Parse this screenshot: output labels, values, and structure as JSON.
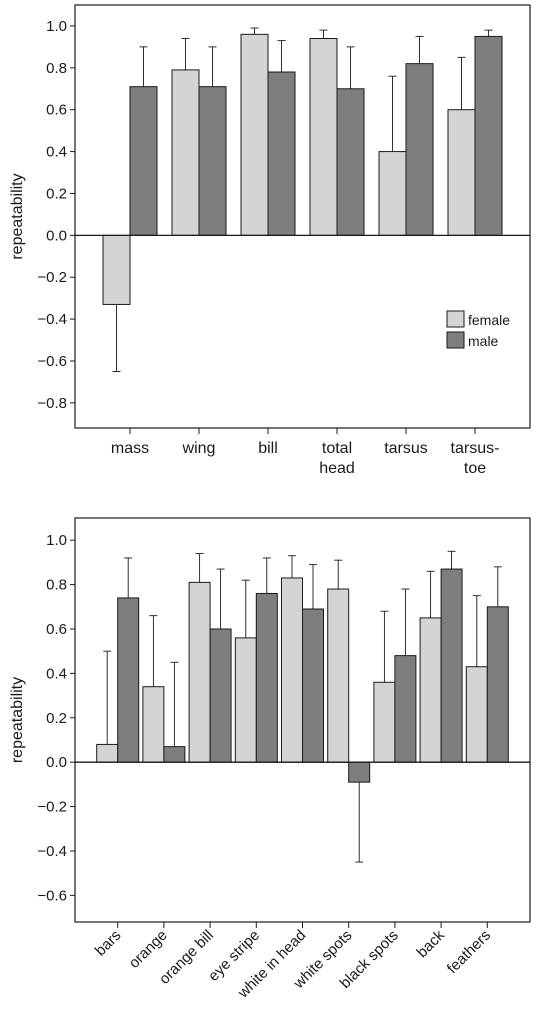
{
  "colors": {
    "female": "#d4d4d4",
    "male": "#7e7e7e",
    "stroke": "#1a1a1a"
  },
  "legend": {
    "female": "female",
    "male": "male"
  },
  "chart_data": [
    {
      "type": "bar",
      "ylabel": "repeatability",
      "ylim": [
        -0.92,
        1.1
      ],
      "yticks": [
        -0.8,
        -0.6,
        -0.4,
        -0.2,
        0.0,
        0.2,
        0.4,
        0.6,
        0.8,
        1.0
      ],
      "ytick_labels": [
        "−0.8",
        "−0.6",
        "−0.4",
        "−0.2",
        "0.0",
        "0.2",
        "0.4",
        "0.6",
        "0.8",
        "1.0"
      ],
      "categories": [
        [
          "mass"
        ],
        [
          "wing"
        ],
        [
          "bill"
        ],
        [
          "total",
          "head"
        ],
        [
          "tarsus"
        ],
        [
          "tarsus-",
          "toe"
        ]
      ],
      "series": [
        {
          "name": "female",
          "values": [
            -0.33,
            0.79,
            0.96,
            0.94,
            0.4,
            0.6
          ],
          "errors": [
            0.32,
            0.15,
            0.03,
            0.04,
            0.36,
            0.25
          ]
        },
        {
          "name": "male",
          "values": [
            0.71,
            0.71,
            0.78,
            0.7,
            0.82,
            0.95
          ],
          "errors": [
            0.19,
            0.19,
            0.15,
            0.2,
            0.13,
            0.03
          ]
        }
      ],
      "legend_position": "right"
    },
    {
      "type": "bar",
      "ylabel": "repeatability",
      "ylim": [
        -0.72,
        1.1
      ],
      "yticks": [
        -0.6,
        -0.4,
        -0.2,
        0.0,
        0.2,
        0.4,
        0.6,
        0.8,
        1.0
      ],
      "ytick_labels": [
        "−0.6",
        "−0.4",
        "−0.2",
        "0.0",
        "0.2",
        "0.4",
        "0.6",
        "0.8",
        "1.0"
      ],
      "categories": [
        [
          "bars"
        ],
        [
          "orange"
        ],
        [
          "orange bill"
        ],
        [
          "eye stripe"
        ],
        [
          "white in head"
        ],
        [
          "white spots"
        ],
        [
          "black spots"
        ],
        [
          "back"
        ],
        [
          "feathers"
        ]
      ],
      "series": [
        {
          "name": "female",
          "values": [
            0.08,
            0.34,
            0.81,
            0.56,
            0.83,
            0.78,
            0.36,
            0.65,
            0.43
          ],
          "errors": [
            0.42,
            0.32,
            0.13,
            0.26,
            0.1,
            0.13,
            0.32,
            0.21,
            0.32
          ]
        },
        {
          "name": "male",
          "values": [
            0.74,
            0.07,
            0.6,
            0.76,
            0.69,
            -0.09,
            0.48,
            0.87,
            0.7
          ],
          "errors": [
            0.18,
            0.38,
            0.27,
            0.16,
            0.2,
            0.36,
            0.3,
            0.08,
            0.18
          ]
        }
      ]
    }
  ]
}
